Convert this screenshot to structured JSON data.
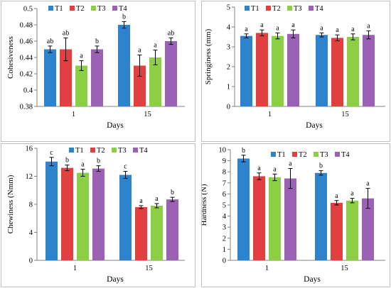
{
  "colors": {
    "T1": "#2e84cc",
    "T2": "#e0403f",
    "T3": "#8ccf45",
    "T4": "#9b61b5"
  },
  "chart_data": [
    {
      "type": "bar",
      "title": "",
      "xlabel": "Days",
      "ylabel": "Cohesiveness",
      "categories": [
        "1",
        "15"
      ],
      "ylim": [
        0.38,
        0.5
      ],
      "yticks": [
        0.38,
        0.4,
        0.42,
        0.44,
        0.46,
        0.48,
        0.5
      ],
      "ytick_labels": [
        "0.38",
        "0.4",
        "0.42",
        "0.44",
        "0.46",
        "0.48",
        "0.5"
      ],
      "grid": false,
      "legend_position": "top-left",
      "series": [
        {
          "name": "T1",
          "values": [
            0.45,
            0.48
          ],
          "errors": [
            0.004,
            0.004
          ],
          "letters": [
            "ab",
            "b"
          ]
        },
        {
          "name": "T2",
          "values": [
            0.45,
            0.43
          ],
          "errors": [
            0.014,
            0.013
          ],
          "letters": [
            "ab",
            "a"
          ]
        },
        {
          "name": "T3",
          "values": [
            0.43,
            0.44
          ],
          "errors": [
            0.006,
            0.009
          ],
          "letters": [
            "a",
            "a"
          ]
        },
        {
          "name": "T4",
          "values": [
            0.45,
            0.46
          ],
          "errors": [
            0.004,
            0.004
          ],
          "letters": [
            "b",
            "ab"
          ]
        }
      ]
    },
    {
      "type": "bar",
      "title": "",
      "xlabel": "Days",
      "ylabel": "Springiness (mm)",
      "categories": [
        "1",
        "15"
      ],
      "ylim": [
        0,
        5
      ],
      "yticks": [
        0,
        1,
        2,
        3,
        4,
        5
      ],
      "ytick_labels": [
        "0",
        "1",
        "2",
        "3",
        "4",
        "5"
      ],
      "grid": false,
      "legend_position": "top",
      "series": [
        {
          "name": "T1",
          "values": [
            3.55,
            3.6
          ],
          "errors": [
            0.1,
            0.1
          ],
          "letters": [
            "a",
            "a"
          ]
        },
        {
          "name": "T2",
          "values": [
            3.7,
            3.45
          ],
          "errors": [
            0.15,
            0.15
          ],
          "letters": [
            "a",
            "a"
          ]
        },
        {
          "name": "T3",
          "values": [
            3.55,
            3.5
          ],
          "errors": [
            0.15,
            0.15
          ],
          "letters": [
            "a",
            "a"
          ]
        },
        {
          "name": "T4",
          "values": [
            3.65,
            3.6
          ],
          "errors": [
            0.2,
            0.2
          ],
          "letters": [
            "a",
            "a"
          ]
        }
      ]
    },
    {
      "type": "bar",
      "title": "",
      "xlabel": "Days",
      "ylabel": "Chewiness (Nmm)",
      "categories": [
        "1",
        "15"
      ],
      "ylim": [
        0,
        16
      ],
      "yticks": [
        0,
        4,
        8,
        12,
        16
      ],
      "ytick_labels": [
        "0",
        "4",
        "8",
        "12",
        "16"
      ],
      "grid": false,
      "legend_position": "top",
      "series": [
        {
          "name": "T1",
          "values": [
            14.1,
            12.2
          ],
          "errors": [
            0.6,
            0.5
          ],
          "letters": [
            "c",
            "c"
          ]
        },
        {
          "name": "T2",
          "values": [
            13.2,
            7.6
          ],
          "errors": [
            0.4,
            0.2
          ],
          "letters": [
            "b",
            "a"
          ]
        },
        {
          "name": "T3",
          "values": [
            12.5,
            7.8
          ],
          "errors": [
            0.5,
            0.3
          ],
          "letters": [
            "a",
            "a"
          ]
        },
        {
          "name": "T4",
          "values": [
            13.1,
            8.7
          ],
          "errors": [
            0.4,
            0.3
          ],
          "letters": [
            "b",
            "b"
          ]
        }
      ]
    },
    {
      "type": "bar",
      "title": "",
      "xlabel": "Days",
      "ylabel": "Hardness (N)",
      "categories": [
        "1",
        "15"
      ],
      "ylim": [
        0,
        10
      ],
      "yticks": [
        0,
        1,
        2,
        3,
        4,
        5,
        6,
        7,
        8,
        9,
        10
      ],
      "ytick_labels": [
        "0",
        "1",
        "2",
        "3",
        "4",
        "5",
        "6",
        "7",
        "8",
        "9",
        "10"
      ],
      "grid": false,
      "legend_position": "top",
      "series": [
        {
          "name": "T1",
          "values": [
            9.2,
            7.9
          ],
          "errors": [
            0.3,
            0.2
          ],
          "letters": [
            "b",
            "b"
          ]
        },
        {
          "name": "T2",
          "values": [
            7.6,
            5.2
          ],
          "errors": [
            0.3,
            0.2
          ],
          "letters": [
            "a",
            "a"
          ]
        },
        {
          "name": "T3",
          "values": [
            7.5,
            5.4
          ],
          "errors": [
            0.3,
            0.2
          ],
          "letters": [
            "a",
            "a"
          ]
        },
        {
          "name": "T4",
          "values": [
            7.4,
            5.6
          ],
          "errors": [
            0.9,
            0.9
          ],
          "letters": [
            "a",
            "a"
          ]
        }
      ]
    }
  ]
}
